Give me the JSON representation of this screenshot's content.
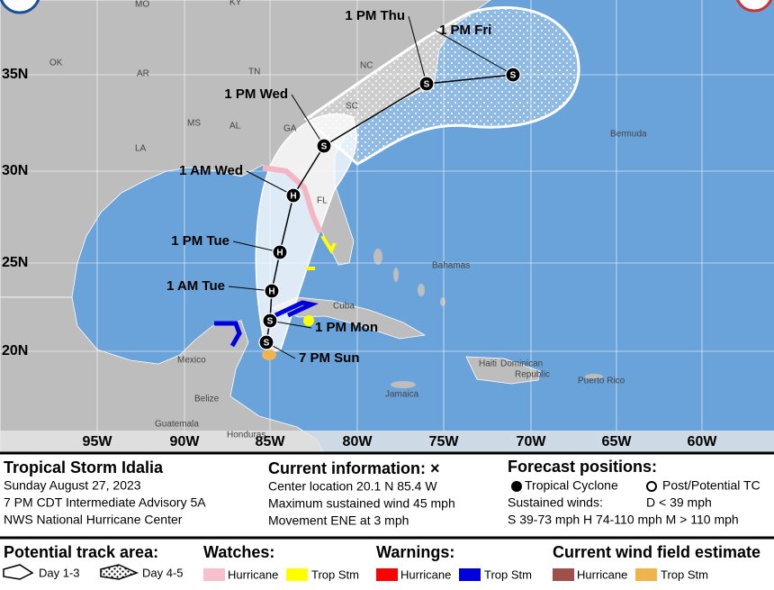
{
  "map": {
    "latitudes": [
      "35N",
      "30N",
      "25N",
      "20N"
    ],
    "longitudes": [
      "95W",
      "90W",
      "85W",
      "80W",
      "75W",
      "70W",
      "65W",
      "60W"
    ],
    "places": [
      "MO",
      "KY",
      "OK",
      "AR",
      "TN",
      "NC",
      "MS",
      "AL",
      "GA",
      "SC",
      "LA",
      "FL",
      "Bermuda",
      "Bahamas",
      "Cuba",
      "Mexico",
      "Belize",
      "Guatemala",
      "Honduras",
      "Jamaica",
      "Haiti",
      "Dominican",
      "Republic",
      "Puerto Rico"
    ],
    "forecast_points": [
      {
        "label": "7 PM Sun",
        "symbol": "S"
      },
      {
        "label": "1 PM Mon",
        "symbol": "S"
      },
      {
        "label": "1 AM Tue",
        "symbol": "H"
      },
      {
        "label": "1 PM Tue",
        "symbol": "H"
      },
      {
        "label": "1 AM Wed",
        "symbol": "H"
      },
      {
        "label": "1 PM Wed",
        "symbol": "S"
      },
      {
        "label": "1 PM Thu",
        "symbol": "S"
      },
      {
        "label": "1 PM Fri",
        "symbol": "S"
      }
    ]
  },
  "info": {
    "storm": {
      "title": "Tropical Storm Idalia",
      "lines": [
        "Sunday August 27, 2023",
        "7 PM CDT Intermediate Advisory 5A",
        "NWS National Hurricane Center"
      ]
    },
    "current": {
      "title": "Current information: ×",
      "lines": [
        "Center location 20.1 N 85.4 W",
        "Maximum sustained wind 45 mph",
        "Movement ENE at 3 mph"
      ]
    },
    "forecast": {
      "title": "Forecast positions:",
      "tropical": "Tropical Cyclone",
      "post": "Post/Potential TC",
      "winds_label": "Sustained winds:",
      "d": "D < 39 mph",
      "scale": "S 39-73 mph  H 74-110 mph  M > 110 mph"
    }
  },
  "legend": {
    "track": {
      "title": "Potential track area:",
      "day13": "Day 1-3",
      "day45": "Day 4-5"
    },
    "watches": {
      "title": "Watches:",
      "hurricane": "Hurricane",
      "tropstm": "Trop Stm"
    },
    "warnings": {
      "title": "Warnings:",
      "hurricane": "Hurricane",
      "tropstm": "Trop Stm"
    },
    "wind": {
      "title": "Current wind field estimate",
      "hurricane": "Hurricane",
      "tropstm": "Trop Stm"
    }
  }
}
